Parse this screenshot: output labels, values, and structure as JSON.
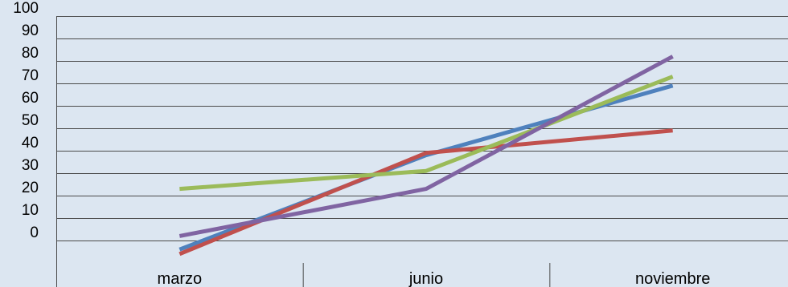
{
  "chart_data": {
    "type": "line",
    "title": "",
    "xlabel": "",
    "ylabel": "",
    "categories": [
      "marzo",
      "junio",
      "noviembre"
    ],
    "ylim": [
      -10,
      100
    ],
    "yticks": [
      0,
      10,
      20,
      30,
      40,
      50,
      60,
      70,
      80,
      90,
      100
    ],
    "grid": true,
    "legend": "none",
    "series": [
      {
        "color": "#4f81bd",
        "values": [
          -4,
          38,
          69
        ]
      },
      {
        "color": "#c0504d",
        "values": [
          -6,
          39,
          49
        ]
      },
      {
        "color": "#9bbb59",
        "values": [
          23,
          31,
          73
        ]
      },
      {
        "color": "#8064a2",
        "values": [
          2,
          23,
          82
        ]
      }
    ]
  }
}
